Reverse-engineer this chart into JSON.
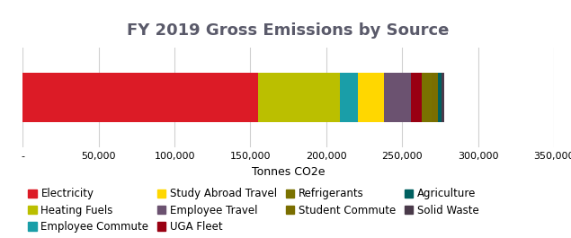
{
  "title": "FY 2019 Gross Emissions by Source",
  "xlabel": "Tonnes CO2e",
  "xlim": [
    0,
    350000
  ],
  "xticks": [
    0,
    50000,
    100000,
    150000,
    200000,
    250000,
    300000,
    350000
  ],
  "xtick_labels": [
    "-",
    "50,000",
    "100,000",
    "150,000",
    "200,000",
    "250,000",
    "300,000",
    "350,000"
  ],
  "sources": [
    {
      "name": "Electricity",
      "value": 155000,
      "color": "#DC1B26"
    },
    {
      "name": "Heating Fuels",
      "value": 54000,
      "color": "#BBBF00"
    },
    {
      "name": "Employee Commute",
      "value": 12000,
      "color": "#1A9EA8"
    },
    {
      "name": "Study Abroad Travel",
      "value": 17000,
      "color": "#FFD700"
    },
    {
      "name": "Employee Travel",
      "value": 18000,
      "color": "#6B5270"
    },
    {
      "name": "UGA Fleet",
      "value": 7000,
      "color": "#990012"
    },
    {
      "name": "Refrigerants",
      "value": 6500,
      "color": "#7A7200"
    },
    {
      "name": "Student Commute",
      "value": 4000,
      "color": "#7A6E00"
    },
    {
      "name": "Agriculture",
      "value": 2500,
      "color": "#006060"
    },
    {
      "name": "Solid Waste",
      "value": 1500,
      "color": "#4A3A4A"
    }
  ],
  "background_color": "#FFFFFF",
  "bar_height": 0.5,
  "title_fontsize": 13,
  "legend_fontsize": 8.5,
  "title_color": "#5A5A6A"
}
